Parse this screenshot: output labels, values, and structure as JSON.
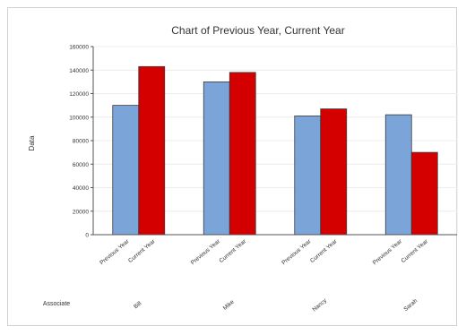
{
  "chart_data": {
    "type": "bar",
    "title": "Chart of Previous Year, Current Year",
    "ylabel": "Data",
    "group_axis_label": "Associate",
    "ylim": [
      0,
      160000
    ],
    "yticks": [
      "0",
      "20000",
      "40000",
      "60000",
      "80000",
      "100000",
      "120000",
      "140000",
      "160000"
    ],
    "groups": [
      "Bill",
      "Mike",
      "Nancy",
      "Sarah"
    ],
    "series": [
      {
        "name": "Previous Year",
        "color": "#7ba4d8",
        "values": [
          110000,
          130000,
          101000,
          102000
        ]
      },
      {
        "name": "Current Year",
        "color": "#d40000",
        "values": [
          143000,
          138000,
          107000,
          70000
        ]
      }
    ],
    "grid": true,
    "legend": "none"
  }
}
